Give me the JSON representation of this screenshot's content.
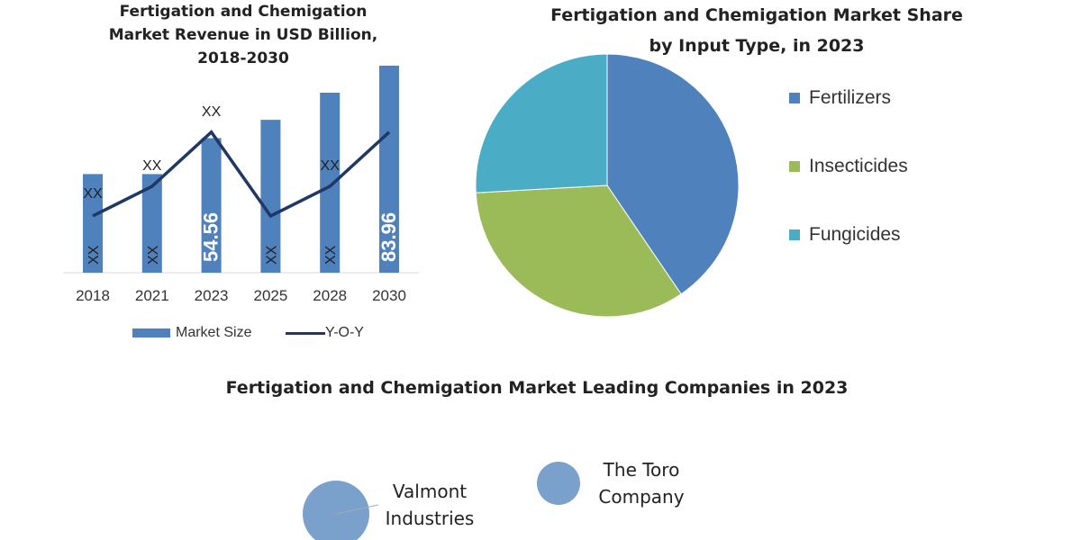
{
  "chart_data": [
    {
      "type": "bar",
      "title": "Fertigation and Chemigation Market Revenue in USD Billion, 2018-2030",
      "title_lines": [
        "Fertigation and Chemigation",
        "Market Revenue in USD Billion,",
        "2018-2030"
      ],
      "categories": [
        "2018",
        "2021",
        "2023",
        "2025",
        "2028",
        "2030"
      ],
      "series": [
        {
          "name": "Market Size",
          "type": "bar",
          "color": "#4f81bd",
          "values": [
            40,
            40,
            54.56,
            62,
            73,
            83.96
          ],
          "labels": [
            "XX",
            "XX",
            "54.56",
            "XX",
            "XX",
            "83.96"
          ]
        },
        {
          "name": "Y-O-Y",
          "type": "line",
          "color": "#1f3864",
          "values": [
            23,
            35,
            57,
            23,
            35,
            57
          ],
          "labels": [
            "XX",
            "XX",
            "XX",
            "",
            "XX",
            ""
          ]
        }
      ],
      "grid": false,
      "legend": "bottom"
    },
    {
      "type": "pie",
      "title_lines": [
        "Fertigation and Chemigation Market Share",
        "by Input Type, in 2023"
      ],
      "categories": [
        "Fertilizers",
        "Insecticides",
        "Fungicides"
      ],
      "values": [
        40.5,
        33.6,
        25.9
      ],
      "colors": [
        "#4f81bd",
        "#9bbb59",
        "#4bacc6"
      ],
      "legend": "right"
    },
    {
      "type": "bubble",
      "title": "Fertigation and Chemigation Market Leading Companies in 2023",
      "items": [
        {
          "name_lines": [
            "Valmont",
            "Industries"
          ],
          "size": 37,
          "color": "#7aa0cc"
        },
        {
          "name_lines": [
            "The Toro",
            "Company"
          ],
          "size": 24,
          "color": "#7aa0cc"
        }
      ]
    }
  ]
}
